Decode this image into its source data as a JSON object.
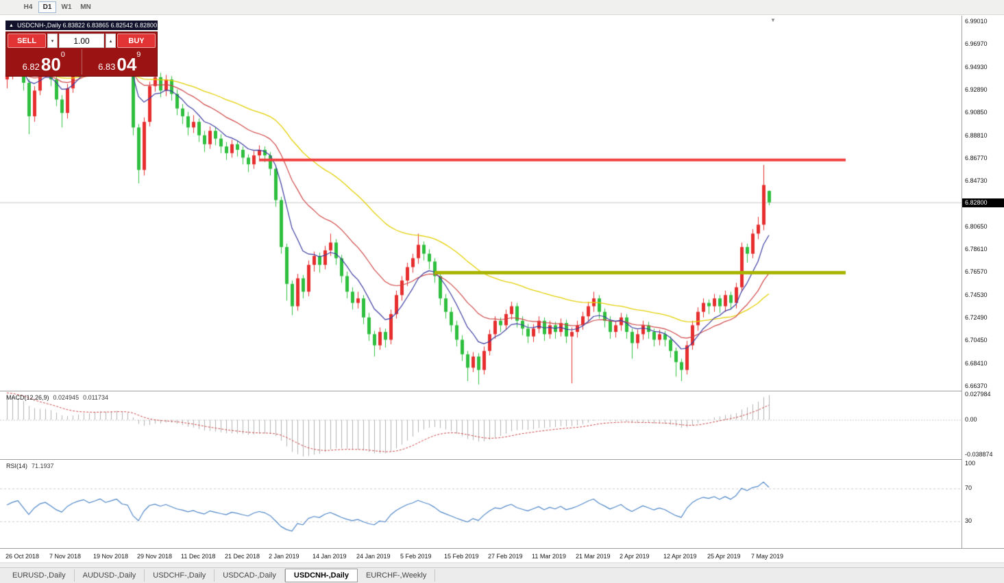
{
  "toolbar": {
    "timeframes": [
      "H4",
      "D1",
      "W1",
      "MN"
    ],
    "active_timeframe": "D1"
  },
  "icons": {
    "title_marker": "▲",
    "volume_down": "▾",
    "volume_up": "▴",
    "shift_marker": "▼"
  },
  "chart": {
    "title": "USDCNH-,Daily  6.83822 6.83865 6.82542 6.82800",
    "symbol": "USDCNH-,Daily",
    "open": "6.83822",
    "high": "6.83865",
    "low": "6.82542",
    "close": "6.82800"
  },
  "trade_panel": {
    "sell_label": "SELL",
    "buy_label": "BUY",
    "volume": "1.00",
    "sell_price": {
      "base": "6.82",
      "pips": "80",
      "point": "0"
    },
    "buy_price": {
      "base": "6.83",
      "pips": "04",
      "point": "9"
    }
  },
  "price_axis": {
    "labels": [
      "6.99010",
      "6.96970",
      "6.94930",
      "6.92890",
      "6.90850",
      "6.88810",
      "6.86770",
      "6.84730",
      "6.80650",
      "6.78610",
      "6.76570",
      "6.74530",
      "6.72490",
      "6.70450",
      "6.68410",
      "6.66370"
    ],
    "current": "6.82800"
  },
  "macd": {
    "name": "MACD(12,26,9)",
    "value": "0.024945",
    "signal": "0.011734",
    "axis": [
      "0.027984",
      "0.00",
      "-0.038874"
    ]
  },
  "rsi": {
    "name": "RSI(14)",
    "value": "71.1937",
    "axis": [
      "100",
      "70",
      "30"
    ],
    "levels": [
      70,
      30
    ]
  },
  "date_axis": [
    "26 Oct 2018",
    "7 Nov 2018",
    "19 Nov 2018",
    "29 Nov 2018",
    "11 Dec 2018",
    "21 Dec 2018",
    "2 Jan 2019",
    "14 Jan 2019",
    "24 Jan 2019",
    "5 Feb 2019",
    "15 Feb 2019",
    "27 Feb 2019",
    "11 Mar 2019",
    "21 Mar 2019",
    "2 Apr 2019",
    "12 Apr 2019",
    "25 Apr 2019",
    "7 May 2019"
  ],
  "tabs": [
    {
      "label": "EURUSD-,Daily",
      "active": false
    },
    {
      "label": "AUDUSD-,Daily",
      "active": false
    },
    {
      "label": "USDCHF-,Daily",
      "active": false
    },
    {
      "label": "USDCAD-,Daily",
      "active": false
    },
    {
      "label": "USDCNH-,Daily",
      "active": true
    },
    {
      "label": "EURCHF-,Weekly",
      "active": false
    }
  ],
  "chart_data": {
    "type": "candlestick",
    "symbol": "USDCNH",
    "timeframe": "Daily",
    "current_price": 6.828,
    "resistance_level": 6.866,
    "support_level": 6.765,
    "resistance_span": [
      46,
      153
    ],
    "support_span": [
      78,
      153
    ],
    "price_range": [
      6.6594,
      6.995
    ],
    "macd_range": [
      -0.042,
      0.03
    ],
    "rsi_range": [
      0,
      100
    ],
    "ma_periods": [
      8,
      20,
      45
    ],
    "colors": {
      "up": "#e62e2e",
      "down": "#2fbf3f",
      "ma_fast": "#3a3aa0",
      "ma_mid": "#cf4545",
      "ma_slow": "#e3cf00",
      "resistance": "#ef4040",
      "support": "#a8b400",
      "macd_hist": "#b0b0b0",
      "macd_signal": "#cc4444",
      "rsi_line": "#4e86c8",
      "rsi_level": "#cfcfcf",
      "bid_line": "#c8c8c8",
      "price_tag_bg": "#000000"
    },
    "candles": [
      [
        6.938,
        6.948,
        6.93,
        6.943
      ],
      [
        6.943,
        6.956,
        6.938,
        6.952
      ],
      [
        6.952,
        6.963,
        6.947,
        6.958
      ],
      [
        6.958,
        6.962,
        6.928,
        6.935
      ],
      [
        6.935,
        6.938,
        6.889,
        6.905
      ],
      [
        6.905,
        6.932,
        6.9,
        6.928
      ],
      [
        6.928,
        6.949,
        6.924,
        6.945
      ],
      [
        6.945,
        6.957,
        6.94,
        6.952
      ],
      [
        6.952,
        6.955,
        6.932,
        6.938
      ],
      [
        6.938,
        6.942,
        6.914,
        6.92
      ],
      [
        6.92,
        6.924,
        6.895,
        6.908
      ],
      [
        6.908,
        6.934,
        6.903,
        6.93
      ],
      [
        6.93,
        6.95,
        6.926,
        6.945
      ],
      [
        6.945,
        6.96,
        6.94,
        6.955
      ],
      [
        6.955,
        6.968,
        6.95,
        6.962
      ],
      [
        6.962,
        6.965,
        6.944,
        6.95
      ],
      [
        6.95,
        6.963,
        6.945,
        6.958
      ],
      [
        6.958,
        6.977,
        6.953,
        6.968
      ],
      [
        6.968,
        6.972,
        6.949,
        6.955
      ],
      [
        6.955,
        6.967,
        6.95,
        6.962
      ],
      [
        6.962,
        6.978,
        6.957,
        6.97
      ],
      [
        6.97,
        6.974,
        6.946,
        6.952
      ],
      [
        6.952,
        6.958,
        6.942,
        6.948
      ],
      [
        6.948,
        6.951,
        6.888,
        6.895
      ],
      [
        6.895,
        6.898,
        6.845,
        6.857
      ],
      [
        6.857,
        6.904,
        6.852,
        6.9
      ],
      [
        6.9,
        6.936,
        6.896,
        6.932
      ],
      [
        6.932,
        6.946,
        6.927,
        6.94
      ],
      [
        6.94,
        6.944,
        6.922,
        6.928
      ],
      [
        6.928,
        6.942,
        6.923,
        6.938
      ],
      [
        6.938,
        6.941,
        6.919,
        6.925
      ],
      [
        6.925,
        6.929,
        6.906,
        6.912
      ],
      [
        6.912,
        6.916,
        6.898,
        6.905
      ],
      [
        6.905,
        6.909,
        6.888,
        6.895
      ],
      [
        6.895,
        6.906,
        6.89,
        6.9
      ],
      [
        6.9,
        6.903,
        6.882,
        6.888
      ],
      [
        6.888,
        6.892,
        6.873,
        6.88
      ],
      [
        6.88,
        6.896,
        6.876,
        6.892
      ],
      [
        6.892,
        6.895,
        6.879,
        6.885
      ],
      [
        6.885,
        6.889,
        6.872,
        6.878
      ],
      [
        6.878,
        6.882,
        6.866,
        6.872
      ],
      [
        6.872,
        6.884,
        6.868,
        6.88
      ],
      [
        6.88,
        6.883,
        6.869,
        6.875
      ],
      [
        6.875,
        6.878,
        6.862,
        6.868
      ],
      [
        6.868,
        6.871,
        6.855,
        6.862
      ],
      [
        6.862,
        6.874,
        6.858,
        6.87
      ],
      [
        6.87,
        6.879,
        6.865,
        6.875
      ],
      [
        6.875,
        6.878,
        6.864,
        6.87
      ],
      [
        6.87,
        6.873,
        6.852,
        6.858
      ],
      [
        6.858,
        6.861,
        6.824,
        6.83
      ],
      [
        6.83,
        6.833,
        6.782,
        6.788
      ],
      [
        6.788,
        6.791,
        6.74,
        6.755
      ],
      [
        6.755,
        6.758,
        6.727,
        6.735
      ],
      [
        6.735,
        6.764,
        6.731,
        6.76
      ],
      [
        6.76,
        6.763,
        6.742,
        6.748
      ],
      [
        6.748,
        6.776,
        6.744,
        6.772
      ],
      [
        6.772,
        6.784,
        6.766,
        6.78
      ],
      [
        6.78,
        6.783,
        6.765,
        6.772
      ],
      [
        6.772,
        6.789,
        6.768,
        6.785
      ],
      [
        6.785,
        6.8,
        6.78,
        6.792
      ],
      [
        6.792,
        6.795,
        6.772,
        6.778
      ],
      [
        6.778,
        6.781,
        6.756,
        6.762
      ],
      [
        6.762,
        6.766,
        6.742,
        6.748
      ],
      [
        6.748,
        6.752,
        6.732,
        6.738
      ],
      [
        6.738,
        6.748,
        6.733,
        6.742
      ],
      [
        6.742,
        6.745,
        6.719,
        6.725
      ],
      [
        6.725,
        6.729,
        6.704,
        6.71
      ],
      [
        6.71,
        6.713,
        6.69,
        6.7
      ],
      [
        6.7,
        6.716,
        6.696,
        6.712
      ],
      [
        6.712,
        6.715,
        6.698,
        6.705
      ],
      [
        6.705,
        6.732,
        6.701,
        6.728
      ],
      [
        6.728,
        6.749,
        6.724,
        6.745
      ],
      [
        6.745,
        6.762,
        6.74,
        6.758
      ],
      [
        6.758,
        6.774,
        6.753,
        6.77
      ],
      [
        6.77,
        6.782,
        6.765,
        6.778
      ],
      [
        6.778,
        6.8,
        6.773,
        6.79
      ],
      [
        6.79,
        6.793,
        6.776,
        6.782
      ],
      [
        6.782,
        6.786,
        6.768,
        6.775
      ],
      [
        6.775,
        6.778,
        6.756,
        6.762
      ],
      [
        6.762,
        6.765,
        6.736,
        6.742
      ],
      [
        6.742,
        6.746,
        6.724,
        6.73
      ],
      [
        6.73,
        6.734,
        6.712,
        6.718
      ],
      [
        6.718,
        6.722,
        6.699,
        6.705
      ],
      [
        6.705,
        6.709,
        6.686,
        6.692
      ],
      [
        6.692,
        6.695,
        6.668,
        6.68
      ],
      [
        6.68,
        6.694,
        6.676,
        6.69
      ],
      [
        6.69,
        6.693,
        6.665,
        6.678
      ],
      [
        6.678,
        6.699,
        6.674,
        6.695
      ],
      [
        6.695,
        6.714,
        6.691,
        6.71
      ],
      [
        6.71,
        6.726,
        6.706,
        6.722
      ],
      [
        6.722,
        6.725,
        6.712,
        6.718
      ],
      [
        6.718,
        6.732,
        6.714,
        6.728
      ],
      [
        6.728,
        6.739,
        6.723,
        6.735
      ],
      [
        6.735,
        6.738,
        6.716,
        6.722
      ],
      [
        6.722,
        6.726,
        6.709,
        6.715
      ],
      [
        6.715,
        6.719,
        6.702,
        6.708
      ],
      [
        6.708,
        6.719,
        6.703,
        6.715
      ],
      [
        6.715,
        6.726,
        6.711,
        6.722
      ],
      [
        6.722,
        6.725,
        6.704,
        6.71
      ],
      [
        6.71,
        6.722,
        6.706,
        6.718
      ],
      [
        6.718,
        6.721,
        6.706,
        6.712
      ],
      [
        6.712,
        6.724,
        6.708,
        6.72
      ],
      [
        6.72,
        6.723,
        6.702,
        6.708
      ],
      [
        6.708,
        6.716,
        6.666,
        6.712
      ],
      [
        6.712,
        6.722,
        6.707,
        6.718
      ],
      [
        6.718,
        6.73,
        6.714,
        6.726
      ],
      [
        6.726,
        6.739,
        6.722,
        6.735
      ],
      [
        6.735,
        6.748,
        6.73,
        6.742
      ],
      [
        6.742,
        6.745,
        6.724,
        6.73
      ],
      [
        6.73,
        6.733,
        6.716,
        6.722
      ],
      [
        6.722,
        6.726,
        6.706,
        6.712
      ],
      [
        6.712,
        6.722,
        6.707,
        6.718
      ],
      [
        6.718,
        6.729,
        6.713,
        6.725
      ],
      [
        6.725,
        6.728,
        6.706,
        6.712
      ],
      [
        6.712,
        6.715,
        6.688,
        6.702
      ],
      [
        6.702,
        6.714,
        6.697,
        6.71
      ],
      [
        6.71,
        6.722,
        6.705,
        6.718
      ],
      [
        6.718,
        6.721,
        6.706,
        6.712
      ],
      [
        6.712,
        6.715,
        6.699,
        6.705
      ],
      [
        6.705,
        6.714,
        6.7,
        6.71
      ],
      [
        6.71,
        6.713,
        6.699,
        6.705
      ],
      [
        6.705,
        6.708,
        6.689,
        6.695
      ],
      [
        6.695,
        6.698,
        6.672,
        6.685
      ],
      [
        6.685,
        6.688,
        6.668,
        6.678
      ],
      [
        6.678,
        6.704,
        6.674,
        6.7
      ],
      [
        6.7,
        6.722,
        6.696,
        6.718
      ],
      [
        6.718,
        6.734,
        6.713,
        6.73
      ],
      [
        6.73,
        6.742,
        6.725,
        6.738
      ],
      [
        6.738,
        6.741,
        6.728,
        6.735
      ],
      [
        6.735,
        6.746,
        6.73,
        6.742
      ],
      [
        6.742,
        6.745,
        6.729,
        6.735
      ],
      [
        6.735,
        6.749,
        6.73,
        6.745
      ],
      [
        6.745,
        6.748,
        6.732,
        6.738
      ],
      [
        6.738,
        6.756,
        6.733,
        6.752
      ],
      [
        6.752,
        6.792,
        6.748,
        6.788
      ],
      [
        6.788,
        6.791,
        6.774,
        6.782
      ],
      [
        6.782,
        6.804,
        6.778,
        6.8
      ],
      [
        6.8,
        6.815,
        6.795,
        6.808
      ],
      [
        6.808,
        6.8615,
        6.803,
        6.8435
      ],
      [
        6.8382,
        6.8387,
        6.8254,
        6.828
      ]
    ]
  }
}
